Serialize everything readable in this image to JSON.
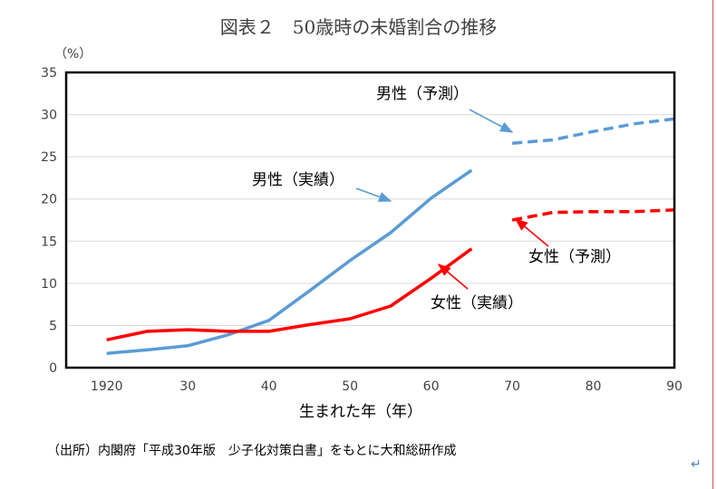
{
  "title": "図表２　50歳時の未婚割合の推移",
  "source_note": "（出所）内閣府「平成30年版　少子化対策白書」をもとに大和総研作成",
  "return_mark": "↵",
  "chart_data": {
    "type": "line",
    "title": "図表２　50歳時の未婚割合の推移",
    "xlabel": "生まれた年（年）",
    "ylabel": "（%）",
    "xlim": [
      1915,
      1990
    ],
    "ylim": [
      0,
      35
    ],
    "x_tick_labels": [
      "1920",
      "30",
      "40",
      "50",
      "60",
      "70",
      "80",
      "90"
    ],
    "x_tick_values": [
      1920,
      1930,
      1940,
      1950,
      1960,
      1970,
      1980,
      1990
    ],
    "y_ticks": [
      0,
      5,
      10,
      15,
      20,
      25,
      30,
      35
    ],
    "grid": "horizontal",
    "legend": "inline annotations",
    "series": [
      {
        "name": "男性（実績）",
        "color": "#5b9bd5",
        "style": "solid",
        "x": [
          1920,
          1925,
          1930,
          1935,
          1940,
          1945,
          1950,
          1955,
          1960,
          1965
        ],
        "y": [
          1.7,
          2.1,
          2.6,
          3.9,
          5.6,
          9.1,
          12.7,
          16.0,
          20.1,
          23.4
        ]
      },
      {
        "name": "女性（実績）",
        "color": "#ff0000",
        "style": "solid",
        "x": [
          1920,
          1925,
          1930,
          1935,
          1940,
          1945,
          1950,
          1955,
          1960,
          1965
        ],
        "y": [
          3.3,
          4.3,
          4.5,
          4.3,
          4.3,
          5.1,
          5.8,
          7.3,
          10.6,
          14.1
        ]
      },
      {
        "name": "男性（予測）",
        "color": "#5b9bd5",
        "style": "dashed",
        "x": [
          1970,
          1975,
          1980,
          1985,
          1990
        ],
        "y": [
          26.6,
          27.0,
          28.0,
          28.9,
          29.5
        ]
      },
      {
        "name": "女性（予測）",
        "color": "#ff0000",
        "style": "dashed",
        "x": [
          1970,
          1975,
          1980,
          1985,
          1990
        ],
        "y": [
          17.5,
          18.4,
          18.5,
          18.5,
          18.7
        ]
      }
    ]
  }
}
